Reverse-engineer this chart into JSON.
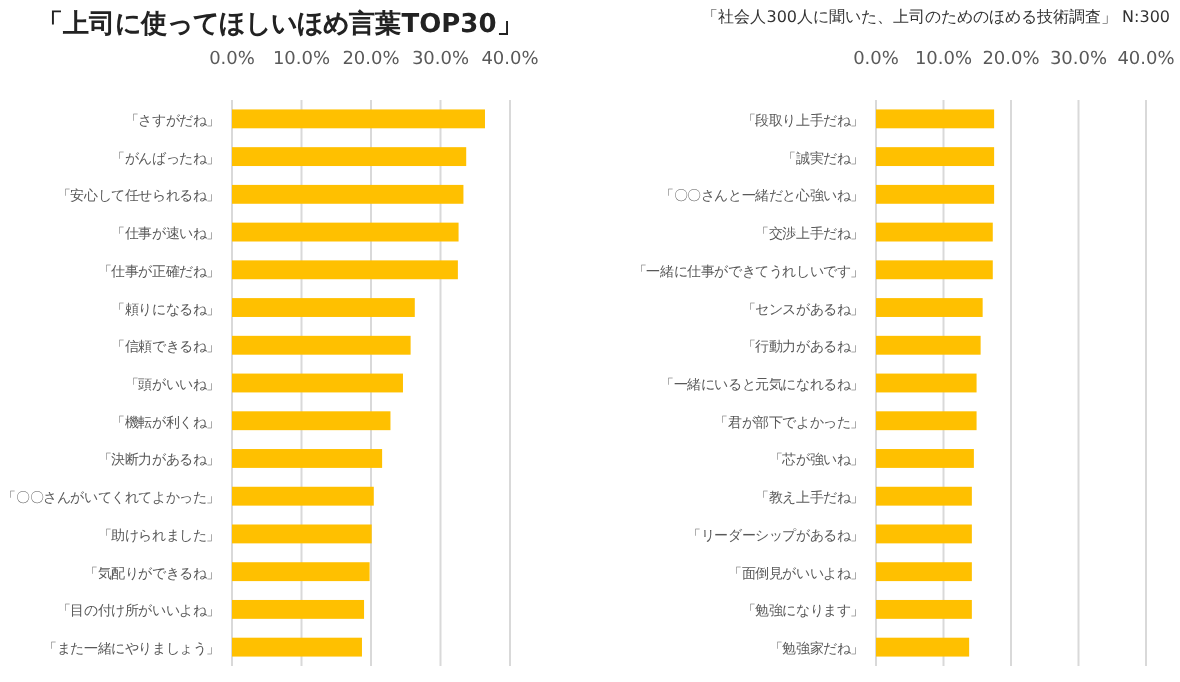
{
  "chart_data": [
    {
      "type": "bar",
      "orientation": "horizontal",
      "title": "「上司に使ってほしいほめ言葉TOP30」",
      "categories": [
        "「さすがだね」",
        "「がんばったね」",
        "「安心して任せられるね」",
        "「仕事が速いね」",
        "「仕事が正確だね」",
        "「頼りになるね」",
        "「信頼できるね」",
        "「頭がいいね」",
        "「機転が利くね」",
        "「決断力があるね」",
        "「〇〇さんがいてくれてよかった」",
        "「助けられました」",
        "「気配りができるね」",
        "「目の付け所がいいよね」",
        "「また一緒にやりましょう」"
      ],
      "values": [
        36.4,
        33.7,
        33.3,
        32.6,
        32.5,
        26.3,
        25.7,
        24.6,
        22.8,
        21.6,
        20.4,
        20.1,
        19.8,
        19.0,
        18.7
      ],
      "color": "#ffc000",
      "xlim": [
        0,
        40
      ],
      "xticks": [
        {
          "value": 0,
          "label": "0.0%"
        },
        {
          "value": 10,
          "label": "10.0%"
        },
        {
          "value": 20,
          "label": "20.0%"
        },
        {
          "value": 30,
          "label": "30.0%"
        },
        {
          "value": 40,
          "label": "40.0%"
        }
      ],
      "grid": "x"
    },
    {
      "type": "bar",
      "orientation": "horizontal",
      "annotations": [
        "「社会人300人に聞いた、上司のためのほめる技術調査」 N:300"
      ],
      "categories": [
        "「段取り上手だね」",
        "「誠実だね」",
        "「〇〇さんと一緒だと心強いね」",
        "「交渉上手だね」",
        "「一緒に仕事ができてうれしいです」",
        "「センスがあるね」",
        "「行動力があるね」",
        "「一緒にいると元気になれるね」",
        "「君が部下でよかった」",
        "「芯が強いね」",
        "「教え上手だね」",
        "「リーダーシップがあるね」",
        "「面倒見がいいよね」",
        "「勉強になります」",
        "「勉強家だね」"
      ],
      "values": [
        17.5,
        17.5,
        17.5,
        17.3,
        17.3,
        15.8,
        15.5,
        14.9,
        14.9,
        14.5,
        14.2,
        14.2,
        14.2,
        14.2,
        13.8
      ],
      "color": "#ffc000",
      "xlim": [
        0,
        40
      ],
      "xticks": [
        {
          "value": 0,
          "label": "0.0%"
        },
        {
          "value": 10,
          "label": "10.0%"
        },
        {
          "value": 20,
          "label": "20.0%"
        },
        {
          "value": 30,
          "label": "30.0%"
        },
        {
          "value": 40,
          "label": "40.0%"
        }
      ],
      "grid": "x"
    }
  ]
}
